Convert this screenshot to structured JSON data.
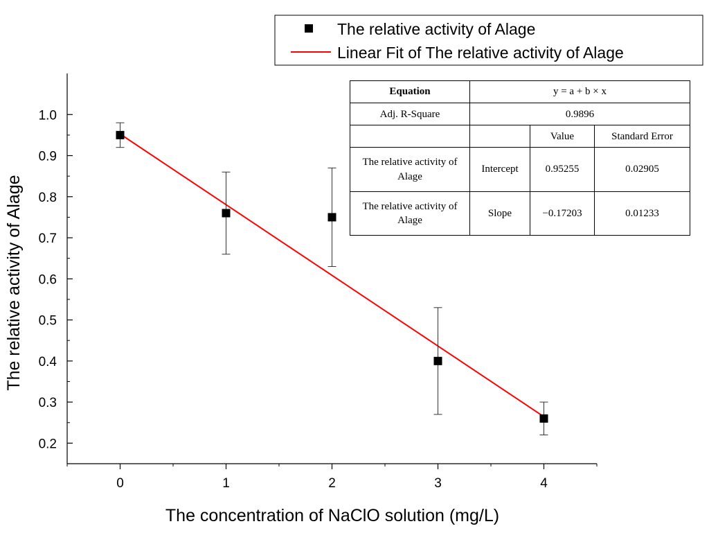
{
  "chart_data": {
    "type": "scatter",
    "xlabel": "The concentration of NaClO solution (mg/L)",
    "ylabel": "The relative activity of Alage",
    "xlim": [
      -0.5,
      4.5
    ],
    "ylim": [
      0.15,
      1.1
    ],
    "xticks": [
      0,
      1,
      2,
      3,
      4
    ],
    "yticks": [
      0.2,
      0.3,
      0.4,
      0.5,
      0.6,
      0.7,
      0.8,
      0.9,
      1.0
    ],
    "xtick_labels": [
      "0",
      "1",
      "2",
      "3",
      "4"
    ],
    "ytick_labels": [
      "0.2",
      "0.3",
      "0.4",
      "0.5",
      "0.6",
      "0.7",
      "0.8",
      "0.9",
      "1.0"
    ],
    "grid": false,
    "legend_position": "top-right, outside plot area",
    "series": [
      {
        "name": "The relative activity of Alage",
        "marker": "square",
        "color": "#000000",
        "x": [
          0,
          1,
          2,
          3,
          4
        ],
        "y": [
          0.95,
          0.76,
          0.75,
          0.4,
          0.26
        ],
        "error": [
          0.03,
          0.1,
          0.12,
          0.13,
          0.04
        ]
      },
      {
        "name": "Linear Fit of The relative activity of Alage",
        "type": "line",
        "color": "#ff0000",
        "x": [
          0,
          4
        ],
        "intercept": 0.95255,
        "slope": -0.17203
      }
    ],
    "fit_table": {
      "equation_label": "Equation",
      "equation": "y = a + b × x",
      "adj_r2_label": "Adj. R-Square",
      "adj_r2": "0.9896",
      "col_value": "Value",
      "col_stderr": "Standard Error",
      "rows": [
        {
          "name": "The relative activity of Alage",
          "param": "Intercept",
          "value": "0.95255",
          "stderr": "0.02905"
        },
        {
          "name": "The relative activity of Alage",
          "param": "Slope",
          "value": "−0.17203",
          "stderr": "0.01233"
        }
      ]
    }
  }
}
